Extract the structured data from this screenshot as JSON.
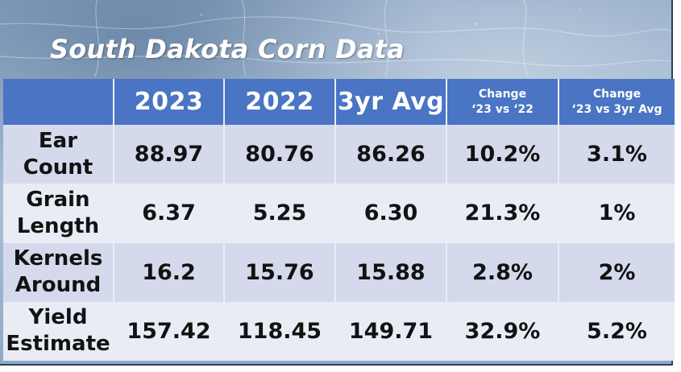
{
  "title": "South Dakota Corn Data",
  "columns": {
    "y2023": "2023",
    "y2022": "2022",
    "avg": "3yr Avg",
    "change1": [
      "Change",
      "‘23 vs ‘22"
    ],
    "change2": [
      "Change",
      "‘23 vs 3yr Avg"
    ]
  },
  "rows": [
    {
      "label": [
        "Ear",
        "Count"
      ],
      "v2023": "88.97",
      "v2022": "80.76",
      "avg": "86.26",
      "chg22": "10.2%",
      "chgavg": "3.1%"
    },
    {
      "label": [
        "Grain",
        "Length"
      ],
      "v2023": "6.37",
      "v2022": "5.25",
      "avg": "6.30",
      "chg22": "21.3%",
      "chgavg": "1%"
    },
    {
      "label": [
        "Kernels",
        "Around"
      ],
      "v2023": "16.2",
      "v2022": "15.76",
      "avg": "15.88",
      "chg22": "2.8%",
      "chgavg": "2%"
    },
    {
      "label": [
        "Yield",
        "Estimate"
      ],
      "v2023": "157.42",
      "v2022": "118.45",
      "avg": "149.71",
      "chg22": "32.9%",
      "chgavg": "5.2%"
    }
  ],
  "colors": {
    "header_bg": "#4a74c4",
    "row_odd": "#d4d9ec",
    "row_even": "#e9ecf5",
    "title_text": "#ffffff"
  }
}
